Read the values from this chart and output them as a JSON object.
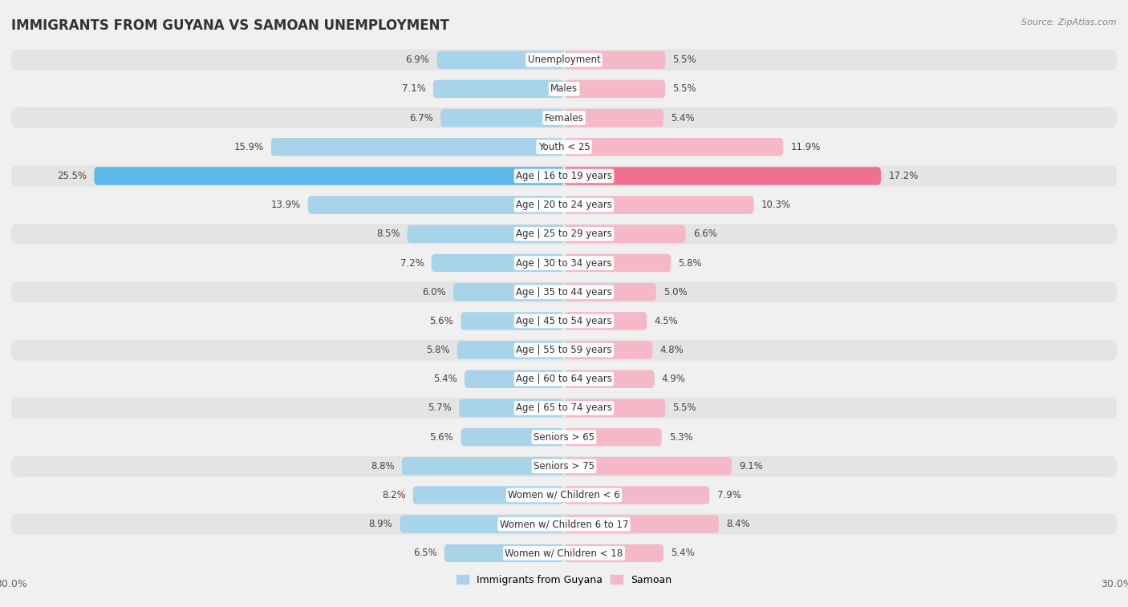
{
  "title": "IMMIGRANTS FROM GUYANA VS SAMOAN UNEMPLOYMENT",
  "source": "Source: ZipAtlas.com",
  "categories": [
    "Unemployment",
    "Males",
    "Females",
    "Youth < 25",
    "Age | 16 to 19 years",
    "Age | 20 to 24 years",
    "Age | 25 to 29 years",
    "Age | 30 to 34 years",
    "Age | 35 to 44 years",
    "Age | 45 to 54 years",
    "Age | 55 to 59 years",
    "Age | 60 to 64 years",
    "Age | 65 to 74 years",
    "Seniors > 65",
    "Seniors > 75",
    "Women w/ Children < 6",
    "Women w/ Children 6 to 17",
    "Women w/ Children < 18"
  ],
  "guyana_values": [
    6.9,
    7.1,
    6.7,
    15.9,
    25.5,
    13.9,
    8.5,
    7.2,
    6.0,
    5.6,
    5.8,
    5.4,
    5.7,
    5.6,
    8.8,
    8.2,
    8.9,
    6.5
  ],
  "samoan_values": [
    5.5,
    5.5,
    5.4,
    11.9,
    17.2,
    10.3,
    6.6,
    5.8,
    5.0,
    4.5,
    4.8,
    4.9,
    5.5,
    5.3,
    9.1,
    7.9,
    8.4,
    5.4
  ],
  "guyana_color": "#a8d4ea",
  "samoan_color": "#f4b8c8",
  "guyana_highlight_color": "#5bb8e8",
  "samoan_highlight_color": "#f07090",
  "highlight_row": 4,
  "bg_color": "#f0f0f0",
  "row_bg_color": "#e8e8e8",
  "row_fg_color": "#fafafa",
  "axis_max": 30.0,
  "legend_guyana": "Immigrants from Guyana",
  "legend_samoan": "Samoan",
  "title_fontsize": 12,
  "label_fontsize": 8.5,
  "value_fontsize": 8.5
}
